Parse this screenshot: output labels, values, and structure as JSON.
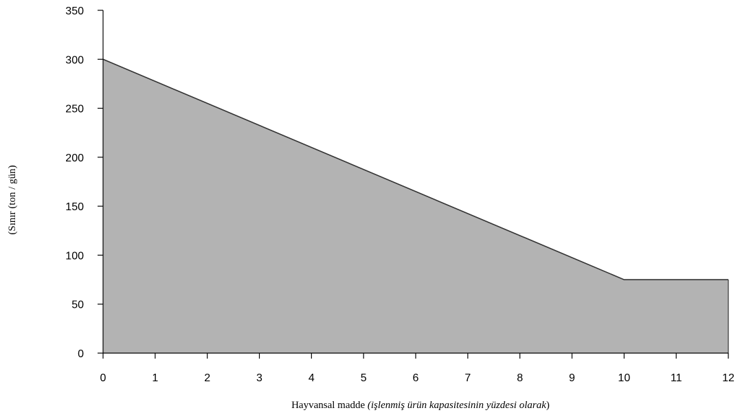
{
  "chart_data": {
    "type": "area",
    "x": [
      0,
      10,
      12
    ],
    "y": [
      300,
      75,
      75
    ],
    "xlim": [
      0,
      12
    ],
    "ylim": [
      0,
      350
    ],
    "xticks": [
      "0",
      "1",
      "2",
      "3",
      "4",
      "5",
      "6",
      "7",
      "8",
      "9",
      "10",
      "11",
      "12"
    ],
    "yticks": [
      "0",
      "50",
      "100",
      "150",
      "200",
      "250",
      "300",
      "350"
    ],
    "xlabel": {
      "main": "Hayvansal madde ",
      "paren_open": "(",
      "italic": "işlenmiş ürün kapasitesinin yüzdesi olarak",
      "paren_close": ")"
    },
    "ylabel": "(Sınır (ton / gün)",
    "grid": false,
    "fill_color": "#b3b3b3",
    "line_color": "#333333"
  }
}
